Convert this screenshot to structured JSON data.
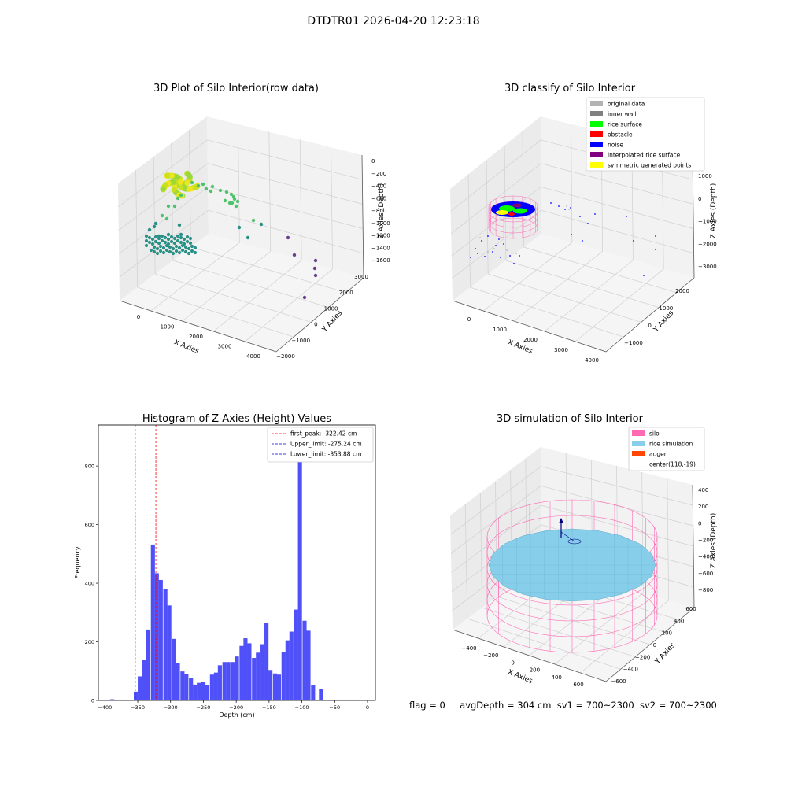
{
  "figure": {
    "suptitle": "DTDTR01 2026-04-20 12:23:18",
    "status": {
      "flag": "flag = 0",
      "avg_depth": "avgDepth = 304 cm",
      "sv1": "sv1 = 700~2300",
      "sv2": "sv2 = 700~2300"
    }
  },
  "colors": {
    "histogram_bar": "#5050f8",
    "peak_line": "#ff0000",
    "limit_line": "#0000cc",
    "viridis_low": "#2a9187",
    "viridis_mid": "#4ec36b",
    "viridis_high": "#f2e51c",
    "silo_wire": "#ff69b4",
    "rice_surface": "#87ceeb",
    "auger": "#ff4500"
  },
  "chart_data": [
    {
      "type": "scatter",
      "subtype": "3d",
      "title": "3D Plot of Silo Interior(row data)",
      "xlabel": "X Axies",
      "ylabel": "Y Axies",
      "zlabel": "Z Axies (Depth)",
      "x_ticks": [
        "0",
        "1000",
        "2000",
        "3000",
        "4000"
      ],
      "y_ticks": [
        "−2000",
        "−1000",
        "0",
        "1000",
        "2000",
        "3000"
      ],
      "z_ticks": [
        "0",
        "−200",
        "−400",
        "−600",
        "−800",
        "−1000",
        "−1200",
        "−1400",
        "−1600"
      ],
      "colormap": "viridis by depth",
      "grid": true
    },
    {
      "type": "scatter",
      "subtype": "3d",
      "title": "3D classify of Silo Interior",
      "xlabel": "X Axies",
      "ylabel": "Y Axies",
      "zlabel": "Z Axies (Depth)",
      "x_ticks": [
        "0",
        "1000",
        "2000",
        "3000",
        "4000"
      ],
      "y_ticks": [
        "−1000",
        "0",
        "1000",
        "2000"
      ],
      "z_ticks": [
        "1000",
        "0",
        "−1000",
        "−2000",
        "−3000"
      ],
      "legend": [
        {
          "name": "original data",
          "color": "#b3b3b3"
        },
        {
          "name": "inner wall",
          "color": "#808080"
        },
        {
          "name": "rice surface",
          "color": "#00ff00"
        },
        {
          "name": "obstacle",
          "color": "#ff0000"
        },
        {
          "name": "noise",
          "color": "#0000ff"
        },
        {
          "name": "interpolated rice surface",
          "color": "#800080"
        },
        {
          "name": "symmetric generated points",
          "color": "#ffff00"
        }
      ],
      "legend_position": "top-right",
      "grid": true
    },
    {
      "type": "bar",
      "subtype": "histogram",
      "title": "Histogram of Z-Axies (Height) Values",
      "xlabel": "Depth (cm)",
      "ylabel": "Frequency",
      "xlim": [
        -410,
        12
      ],
      "ylim": [
        0,
        940
      ],
      "x_ticks": [
        -400,
        -350,
        -300,
        -250,
        -200,
        -150,
        -100,
        -50,
        0
      ],
      "y_ticks": [
        0,
        200,
        400,
        600,
        800
      ],
      "bin_width": 6.4,
      "bins": [
        [
          -392,
          4
        ],
        [
          -356,
          30
        ],
        [
          -350,
          82
        ],
        [
          -343,
          137
        ],
        [
          -337,
          242
        ],
        [
          -330,
          532
        ],
        [
          -324,
          434
        ],
        [
          -318,
          411
        ],
        [
          -311,
          380
        ],
        [
          -305,
          324
        ],
        [
          -298,
          210
        ],
        [
          -292,
          127
        ],
        [
          -285,
          99
        ],
        [
          -279,
          89
        ],
        [
          -272,
          76
        ],
        [
          -266,
          54
        ],
        [
          -260,
          60
        ],
        [
          -253,
          63
        ],
        [
          -247,
          52
        ],
        [
          -240,
          88
        ],
        [
          -234,
          95
        ],
        [
          -228,
          120
        ],
        [
          -221,
          131
        ],
        [
          -215,
          131
        ],
        [
          -208,
          131
        ],
        [
          -202,
          150
        ],
        [
          -195,
          186
        ],
        [
          -189,
          212
        ],
        [
          -183,
          195
        ],
        [
          -176,
          145
        ],
        [
          -170,
          163
        ],
        [
          -163,
          192
        ],
        [
          -157,
          265
        ],
        [
          -151,
          104
        ],
        [
          -144,
          92
        ],
        [
          -138,
          88
        ],
        [
          -131,
          165
        ],
        [
          -125,
          205
        ],
        [
          -119,
          235
        ],
        [
          -112,
          310
        ],
        [
          -106,
          920
        ],
        [
          -99,
          272
        ],
        [
          -93,
          238
        ],
        [
          -86,
          52
        ],
        [
          -74,
          40
        ]
      ],
      "vlines": [
        {
          "name": "first_peak: -322.42 cm",
          "x": -322.42,
          "style": "dashed",
          "color": "#ff0000"
        },
        {
          "name": "Upper_limit: -275.24 cm",
          "x": -275.24,
          "style": "dashed",
          "color": "#0000cc"
        },
        {
          "name": "Lower_limit: -353.88 cm",
          "x": -353.88,
          "style": "dashed",
          "color": "#0000cc"
        }
      ],
      "legend_position": "top-right"
    },
    {
      "type": "line",
      "subtype": "3d wireframe",
      "title": "3D simulation of Silo Interior",
      "xlabel": "X Axies",
      "ylabel": "Y Axies",
      "zlabel": "Z Axies (Depth)",
      "x_ticks": [
        "−400",
        "−200",
        "0",
        "200",
        "400",
        "600"
      ],
      "y_ticks": [
        "−600",
        "−400",
        "−200",
        "0",
        "200",
        "400",
        "600"
      ],
      "z_ticks": [
        "400",
        "200",
        "0",
        "−200",
        "−400",
        "−600",
        "−800"
      ],
      "legend": [
        {
          "name": "silo",
          "color": "#ff69b4"
        },
        {
          "name": "rice simulation",
          "color": "#87ceeb"
        },
        {
          "name": "auger",
          "color": "#ff4500"
        },
        {
          "name": "center(118,-19)",
          "color": ""
        }
      ],
      "legend_position": "top-right",
      "grid": true
    }
  ]
}
